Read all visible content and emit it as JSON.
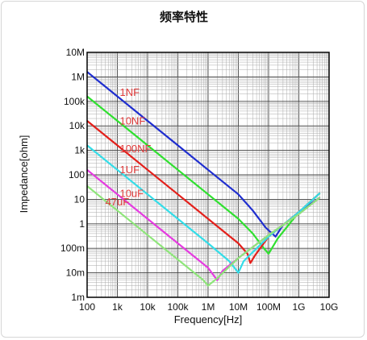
{
  "chart_data": {
    "type": "line",
    "title": "频率特性",
    "xlabel": "Frequency[Hz]",
    "ylabel": "Impedance[ohm]",
    "xscale": "log",
    "yscale": "log",
    "xlim": [
      100,
      10000000000
    ],
    "ylim": [
      0.001,
      10000000
    ],
    "x_ticks": [
      {
        "value": 100,
        "label": "100"
      },
      {
        "value": 1000,
        "label": "1k"
      },
      {
        "value": 10000,
        "label": "10k"
      },
      {
        "value": 100000,
        "label": "100k"
      },
      {
        "value": 1000000,
        "label": "1M"
      },
      {
        "value": 10000000,
        "label": "10M"
      },
      {
        "value": 100000000,
        "label": "100M"
      },
      {
        "value": 1000000000,
        "label": "1G"
      },
      {
        "value": 10000000000,
        "label": "10G"
      }
    ],
    "y_ticks": [
      {
        "value": 0.001,
        "label": "1m"
      },
      {
        "value": 0.01,
        "label": "10m"
      },
      {
        "value": 0.1,
        "label": "100m"
      },
      {
        "value": 1,
        "label": "1"
      },
      {
        "value": 10,
        "label": "10"
      },
      {
        "value": 100,
        "label": "100"
      },
      {
        "value": 1000,
        "label": "1k"
      },
      {
        "value": 10000,
        "label": "10k"
      },
      {
        "value": 100000,
        "label": "100k"
      },
      {
        "value": 1000000,
        "label": "1M"
      },
      {
        "value": 10000000,
        "label": "10M"
      }
    ],
    "grid": true,
    "series": [
      {
        "name": "1NF",
        "color": "#1f2ecf",
        "label_color": "#e03b3b",
        "points": [
          [
            100,
            1600000
          ],
          [
            1000,
            160000
          ],
          [
            10000,
            16000
          ],
          [
            100000,
            1600
          ],
          [
            1000000,
            160
          ],
          [
            10000000,
            16
          ],
          [
            30000000,
            3.5
          ],
          [
            80000000,
            0.7
          ],
          [
            170000000,
            0.3
          ],
          [
            300000000,
            0.9
          ],
          [
            1000000000,
            3
          ],
          [
            5000000000,
            12
          ]
        ]
      },
      {
        "name": "10NF",
        "color": "#2fe02f",
        "label_color": "#e03b3b",
        "points": [
          [
            100,
            160000
          ],
          [
            1000,
            16000
          ],
          [
            10000,
            1600
          ],
          [
            100000,
            160
          ],
          [
            1000000,
            16
          ],
          [
            10000000,
            1.6
          ],
          [
            30000000,
            0.4
          ],
          [
            70000000,
            0.1
          ],
          [
            100000000,
            0.06
          ],
          [
            200000000,
            0.25
          ],
          [
            1000000000,
            3
          ],
          [
            5000000000,
            18
          ]
        ]
      },
      {
        "name": "100NF",
        "color": "#e3201b",
        "label_color": "#e03b3b",
        "points": [
          [
            100,
            16000
          ],
          [
            1000,
            1600
          ],
          [
            10000,
            160
          ],
          [
            100000,
            16
          ],
          [
            1000000,
            1.6
          ],
          [
            10000000,
            0.16
          ],
          [
            20000000,
            0.06
          ],
          [
            25000000,
            0.025
          ],
          [
            35000000,
            0.05
          ],
          [
            100000000,
            0.3
          ],
          [
            1000000000,
            3
          ],
          [
            5000000000,
            18
          ]
        ]
      },
      {
        "name": "1UF",
        "color": "#33dde8",
        "label_color": "#e03b3b",
        "points": [
          [
            100,
            1600
          ],
          [
            1000,
            160
          ],
          [
            10000,
            16
          ],
          [
            100000,
            1.6
          ],
          [
            1000000,
            0.16
          ],
          [
            5000000,
            0.03
          ],
          [
            10000000,
            0.01
          ],
          [
            15000000,
            0.03
          ],
          [
            100000000,
            0.3
          ],
          [
            1000000000,
            3
          ],
          [
            5000000000,
            18
          ]
        ]
      },
      {
        "name": "10uF",
        "color": "#e53be0",
        "label_color": "#e03b3b",
        "points": [
          [
            100,
            160
          ],
          [
            1000,
            16
          ],
          [
            10000,
            1.6
          ],
          [
            100000,
            0.16
          ],
          [
            1000000,
            0.016
          ],
          [
            2000000,
            0.005
          ],
          [
            3000000,
            0.012
          ],
          [
            10000000,
            0.04
          ],
          [
            100000000,
            0.35
          ],
          [
            1000000000,
            2.5
          ],
          [
            5000000000,
            12
          ]
        ]
      },
      {
        "name": "47uF",
        "color": "#8ee67a",
        "label_color": "#e03b3b",
        "points": [
          [
            100,
            35
          ],
          [
            1000,
            3.5
          ],
          [
            10000,
            0.35
          ],
          [
            100000,
            0.035
          ],
          [
            700000,
            0.005
          ],
          [
            1000000,
            0.003
          ],
          [
            2000000,
            0.006
          ],
          [
            10000000,
            0.04
          ],
          [
            100000000,
            0.35
          ],
          [
            1000000000,
            2.5
          ],
          [
            5000000000,
            12
          ]
        ]
      }
    ]
  }
}
